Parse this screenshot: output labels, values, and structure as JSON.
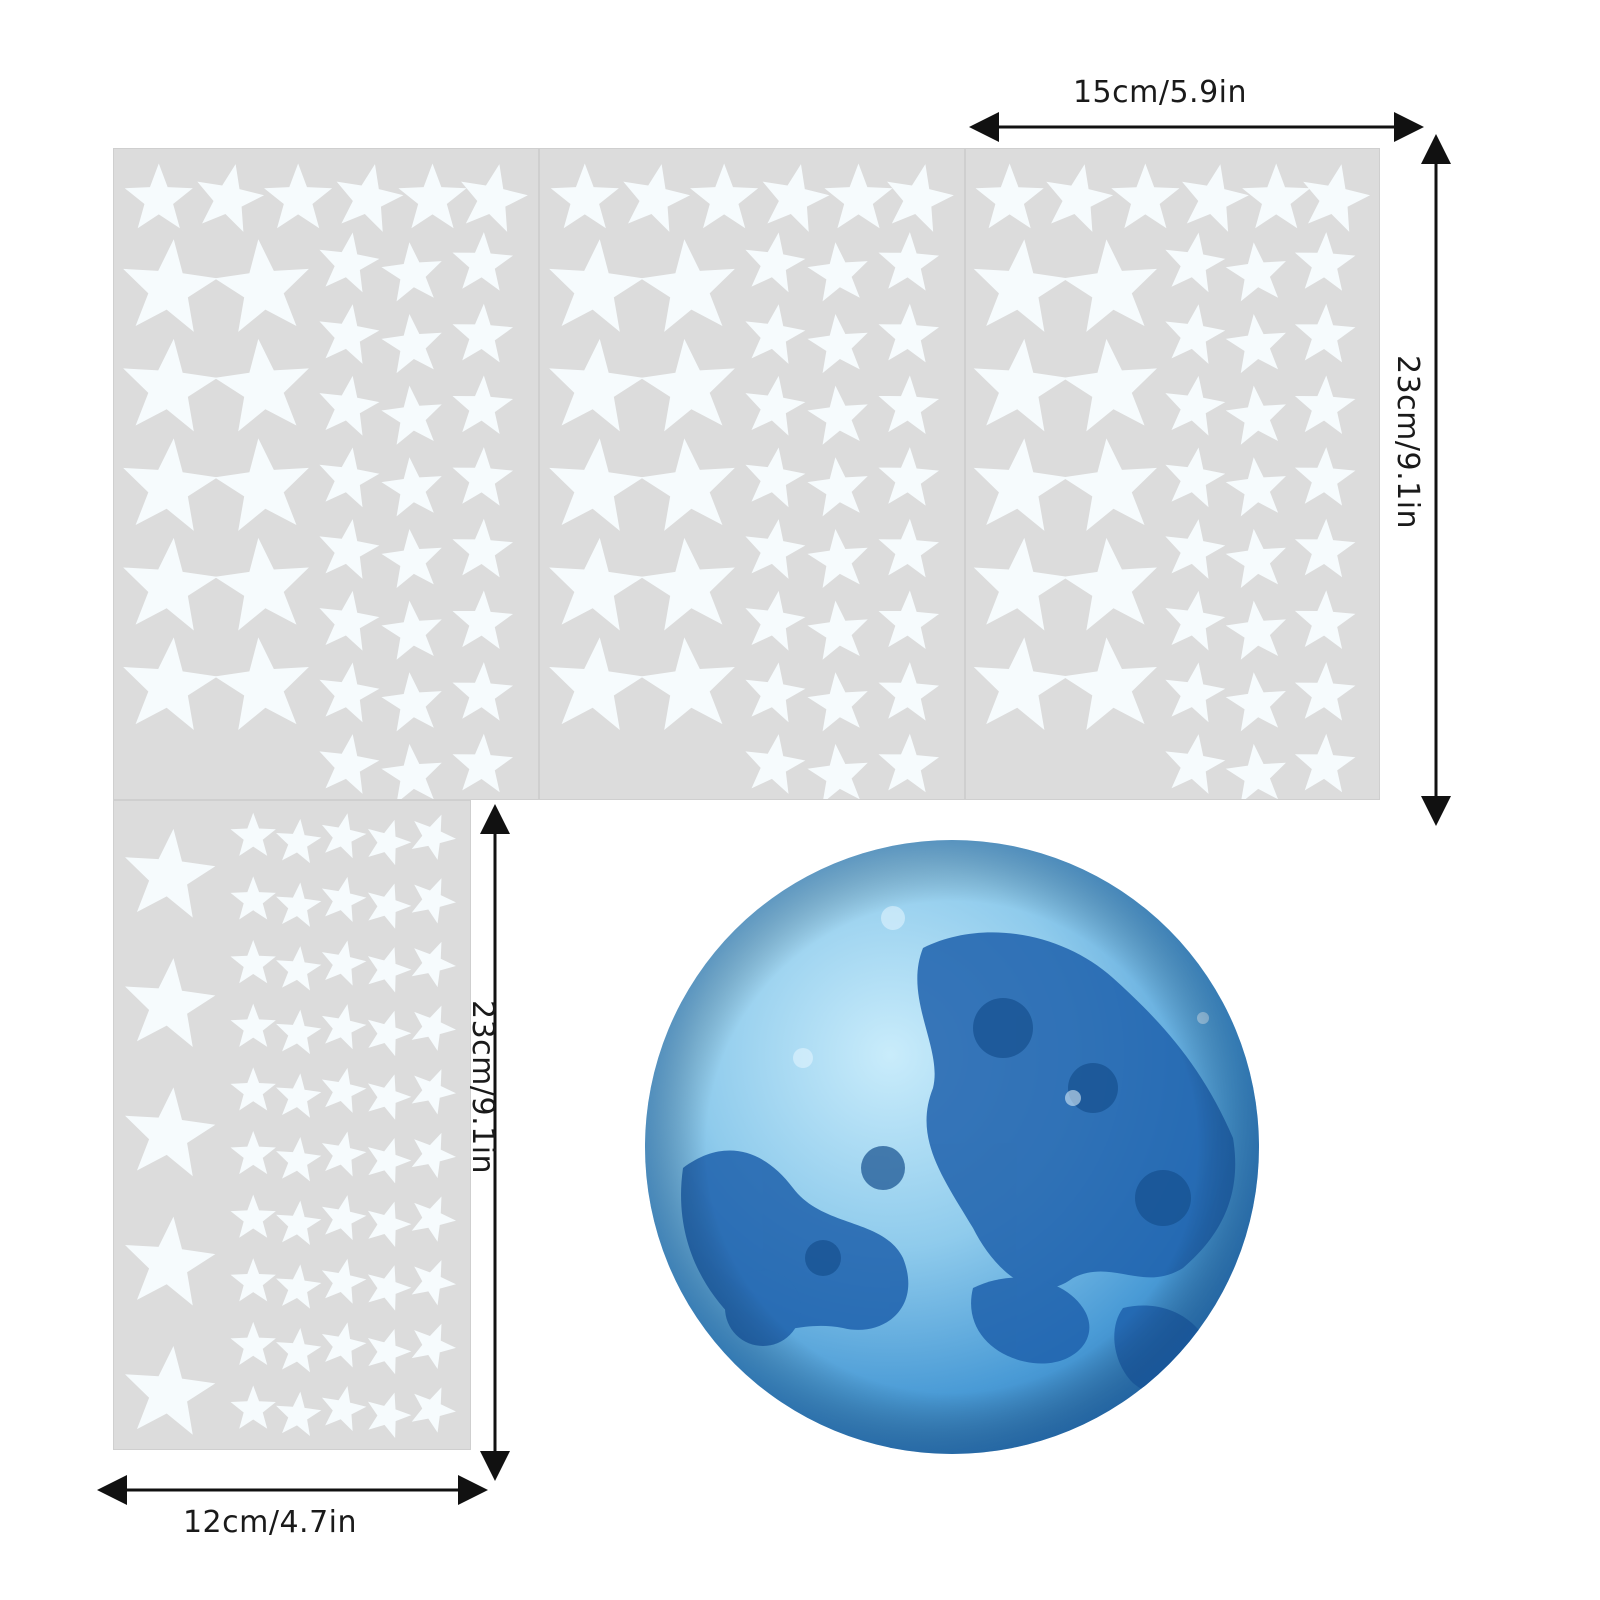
{
  "dimensions": {
    "top_width": "15cm/5.9in",
    "right_height": "23cm/9.1in",
    "middle_height": "23cm/9.1in",
    "bottom_width": "12cm/4.7in"
  },
  "sheets": [
    {
      "name": "star-sheet-1",
      "kind": "large-stars"
    },
    {
      "name": "star-sheet-2",
      "kind": "large-stars"
    },
    {
      "name": "star-sheet-3",
      "kind": "large-stars"
    },
    {
      "name": "star-sheet-4",
      "kind": "small-stars"
    }
  ],
  "colors": {
    "sheet": "#dcdcdc",
    "star": "#f6fbfd",
    "moon_light": "#9fd3f0",
    "moon_dark": "#1d5fa8",
    "text": "#1a1a1a"
  },
  "icons": [
    "star-icon",
    "moon-icon",
    "arrow-icon"
  ]
}
